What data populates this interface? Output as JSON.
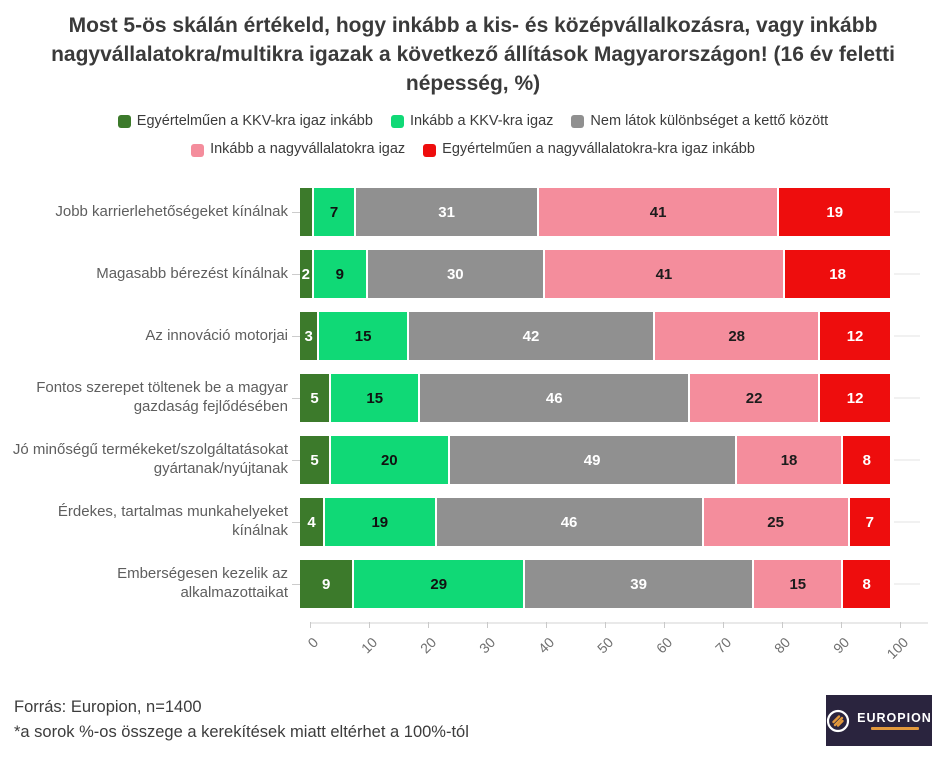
{
  "footer": {
    "source": "Forrás: Europion, n=1400",
    "note": "*a sorok %-os összege a kerekítések miatt eltérhet a 100%-tól"
  },
  "logo": {
    "brand": "EUROPION",
    "background": "#2a243e",
    "accent": "#e2993c"
  },
  "chart_data": {
    "type": "bar",
    "orientation": "horizontal",
    "stacked": true,
    "title": "Most 5-ös skálán értékeld, hogy inkább a kis- és középvállalkozásra, vagy inkább nagyvállalatokra/multikra igazak a következő állítások Magyarországon! (16 év feletti népesség, %)",
    "legend_position": "top",
    "value_labels": "inside",
    "xlim": [
      0,
      100
    ],
    "x_ticks": [
      0,
      10,
      20,
      30,
      40,
      50,
      60,
      70,
      80,
      90,
      100
    ],
    "categories": [
      "Jobb karrierlehetőségeket kínálnak",
      "Magasabb bérezést kínálnak",
      "Az innováció motorjai",
      "Fontos szerepet töltenek be a magyar gazdaság fejlődésében",
      "Jó minőségű termékeket/szolgáltatásokat gyártanak/nyújtanak",
      "Érdekes, tartalmas munkahelyeket kínálnak",
      "Emberségesen kezelik az alkalmazottaikat"
    ],
    "series": [
      {
        "name": "Egyértelműen a KKV-kra igaz inkább",
        "color": "#3c7a2b",
        "text_color": "#ffffff",
        "values": [
          2,
          2,
          3,
          5,
          5,
          4,
          9
        ],
        "label_visible": [
          false,
          true,
          true,
          true,
          true,
          true,
          true
        ]
      },
      {
        "name": "Inkább a KKV-kra igaz",
        "color": "#10d976",
        "text_color": "#111111",
        "values": [
          7,
          9,
          15,
          15,
          20,
          19,
          29
        ]
      },
      {
        "name": "Nem látok különbséget a kettő között",
        "color": "#909090",
        "text_color": "#ffffff",
        "values": [
          31,
          30,
          42,
          46,
          49,
          46,
          39
        ]
      },
      {
        "name": "Inkább a nagyvállalatokra igaz",
        "color": "#f48d9c",
        "text_color": "#1c1c1c",
        "values": [
          41,
          41,
          28,
          22,
          18,
          25,
          15
        ]
      },
      {
        "name": "Egyértelműen a nagyvállalatokra-kra igaz inkább",
        "color": "#ee0d0d",
        "text_color": "#ffffff",
        "values": [
          19,
          18,
          12,
          12,
          8,
          7,
          8
        ]
      }
    ]
  }
}
